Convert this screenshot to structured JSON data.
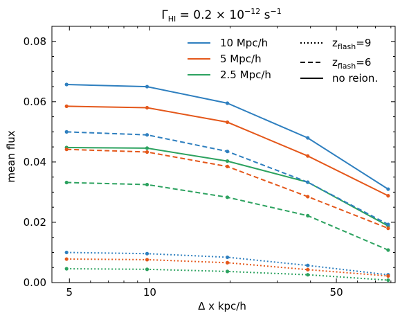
{
  "chart_data": {
    "type": "line",
    "title": "Γ_HI = 0.2 × 10⁻¹² s⁻¹",
    "title_parts": {
      "gamma": "Γ",
      "sub": "HI",
      "eq": " = 0.2 × 10",
      "sup": "−12",
      "unit": " s",
      "unit_sup": "−1"
    },
    "xlabel": "Δ x kpc/h",
    "ylabel": "mean flux",
    "xscale": "log",
    "xlim": [
      4.3,
      83
    ],
    "ylim": [
      0.0,
      0.085
    ],
    "xticks": [
      5,
      10,
      50
    ],
    "xtick_labels": [
      "5",
      "10",
      "50"
    ],
    "yticks": [
      0.0,
      0.02,
      0.04,
      0.06,
      0.08
    ],
    "ytick_labels": [
      "0.00",
      "0.02",
      "0.04",
      "0.06",
      "0.08"
    ],
    "x": [
      4.88,
      9.77,
      19.53,
      39.06,
      78.13
    ],
    "series": [
      {
        "name": "10 Mpc/h",
        "style": "solid",
        "color": "#1f77b4",
        "values": [
          0.0657,
          0.065,
          0.0595,
          0.048,
          0.031
        ]
      },
      {
        "name": "5 Mpc/h",
        "style": "solid",
        "color": "#d62728",
        "values": [
          0.0585,
          0.058,
          0.0532,
          0.042,
          0.0288
        ]
      },
      {
        "name": "2.5 Mpc/h",
        "style": "solid",
        "color": "#2ca02c",
        "values": [
          0.0448,
          0.0446,
          0.0403,
          0.0333,
          0.0188
        ]
      },
      {
        "name": "10 Mpc/h",
        "style": "dashed",
        "color": "#1f77b4",
        "values": [
          0.05,
          0.049,
          0.0435,
          0.0333,
          0.0193
        ]
      },
      {
        "name": "5 Mpc/h",
        "style": "dashed",
        "color": "#d62728",
        "values": [
          0.0442,
          0.0433,
          0.0385,
          0.0285,
          0.018
        ]
      },
      {
        "name": "2.5 Mpc/h",
        "style": "dashed",
        "color": "#2ca02c",
        "values": [
          0.0332,
          0.0325,
          0.0283,
          0.0222,
          0.0108
        ]
      },
      {
        "name": "10 Mpc/h",
        "style": "dotted",
        "color": "#1f77b4",
        "values": [
          0.01,
          0.0096,
          0.0084,
          0.0057,
          0.0026
        ]
      },
      {
        "name": "5 Mpc/h",
        "style": "dotted",
        "color": "#d62728",
        "values": [
          0.0078,
          0.0076,
          0.0066,
          0.0043,
          0.0022
        ]
      },
      {
        "name": "2.5 Mpc/h",
        "style": "dotted",
        "color": "#2ca02c",
        "values": [
          0.0046,
          0.0044,
          0.0037,
          0.0026,
          0.0008
        ]
      }
    ],
    "colors": {
      "blue": "#1f77b4",
      "orange": "#e4571a",
      "green": "#2ca25f"
    },
    "legend_resolution": [
      {
        "label": "10 Mpc/h",
        "color": "#2e7fbf"
      },
      {
        "label": "5 Mpc/h",
        "color": "#e4571a"
      },
      {
        "label": "2.5 Mpc/h",
        "color": "#2ca25f"
      }
    ],
    "legend_style": [
      {
        "style": "dotted",
        "label_main": "z",
        "label_sub": "flash",
        "label_tail": "=9"
      },
      {
        "style": "dashed",
        "label_main": "z",
        "label_sub": "flash",
        "label_tail": "=6"
      },
      {
        "style": "solid",
        "label_main": "no reion.",
        "label_sub": "",
        "label_tail": ""
      }
    ],
    "legend_placement": "top-right",
    "grid": false
  }
}
